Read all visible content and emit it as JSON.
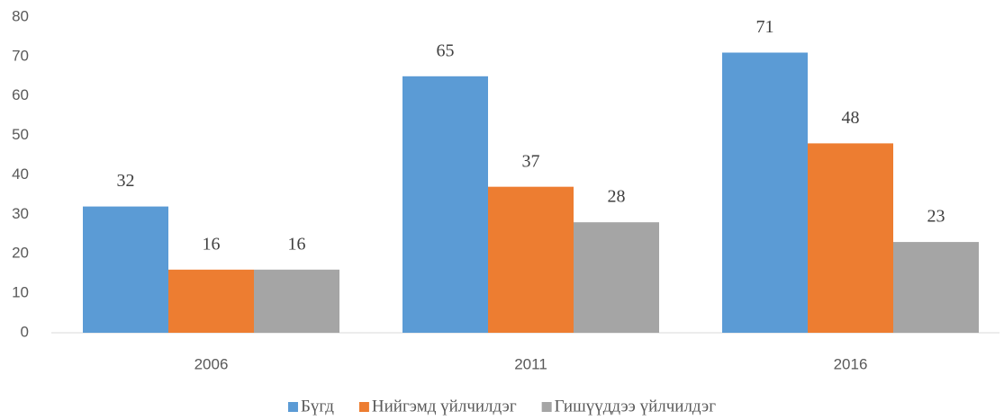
{
  "chart_data": {
    "type": "bar",
    "categories": [
      "2006",
      "2011",
      "2016"
    ],
    "series": [
      {
        "name": "Бүгд",
        "color": "#5b9bd5",
        "values": [
          32,
          65,
          71
        ]
      },
      {
        "name": "Нийгэмд үйлчилдэг",
        "color": "#ed7d31",
        "values": [
          16,
          37,
          48
        ]
      },
      {
        "name": "Гишүүддээ үйлчилдэг",
        "color": "#a5a5a5",
        "values": [
          16,
          28,
          23
        ]
      }
    ],
    "ylim": [
      0,
      80
    ],
    "yticks": [
      0,
      10,
      20,
      30,
      40,
      50,
      60,
      70,
      80
    ],
    "grid": false,
    "legend": "bottom"
  }
}
